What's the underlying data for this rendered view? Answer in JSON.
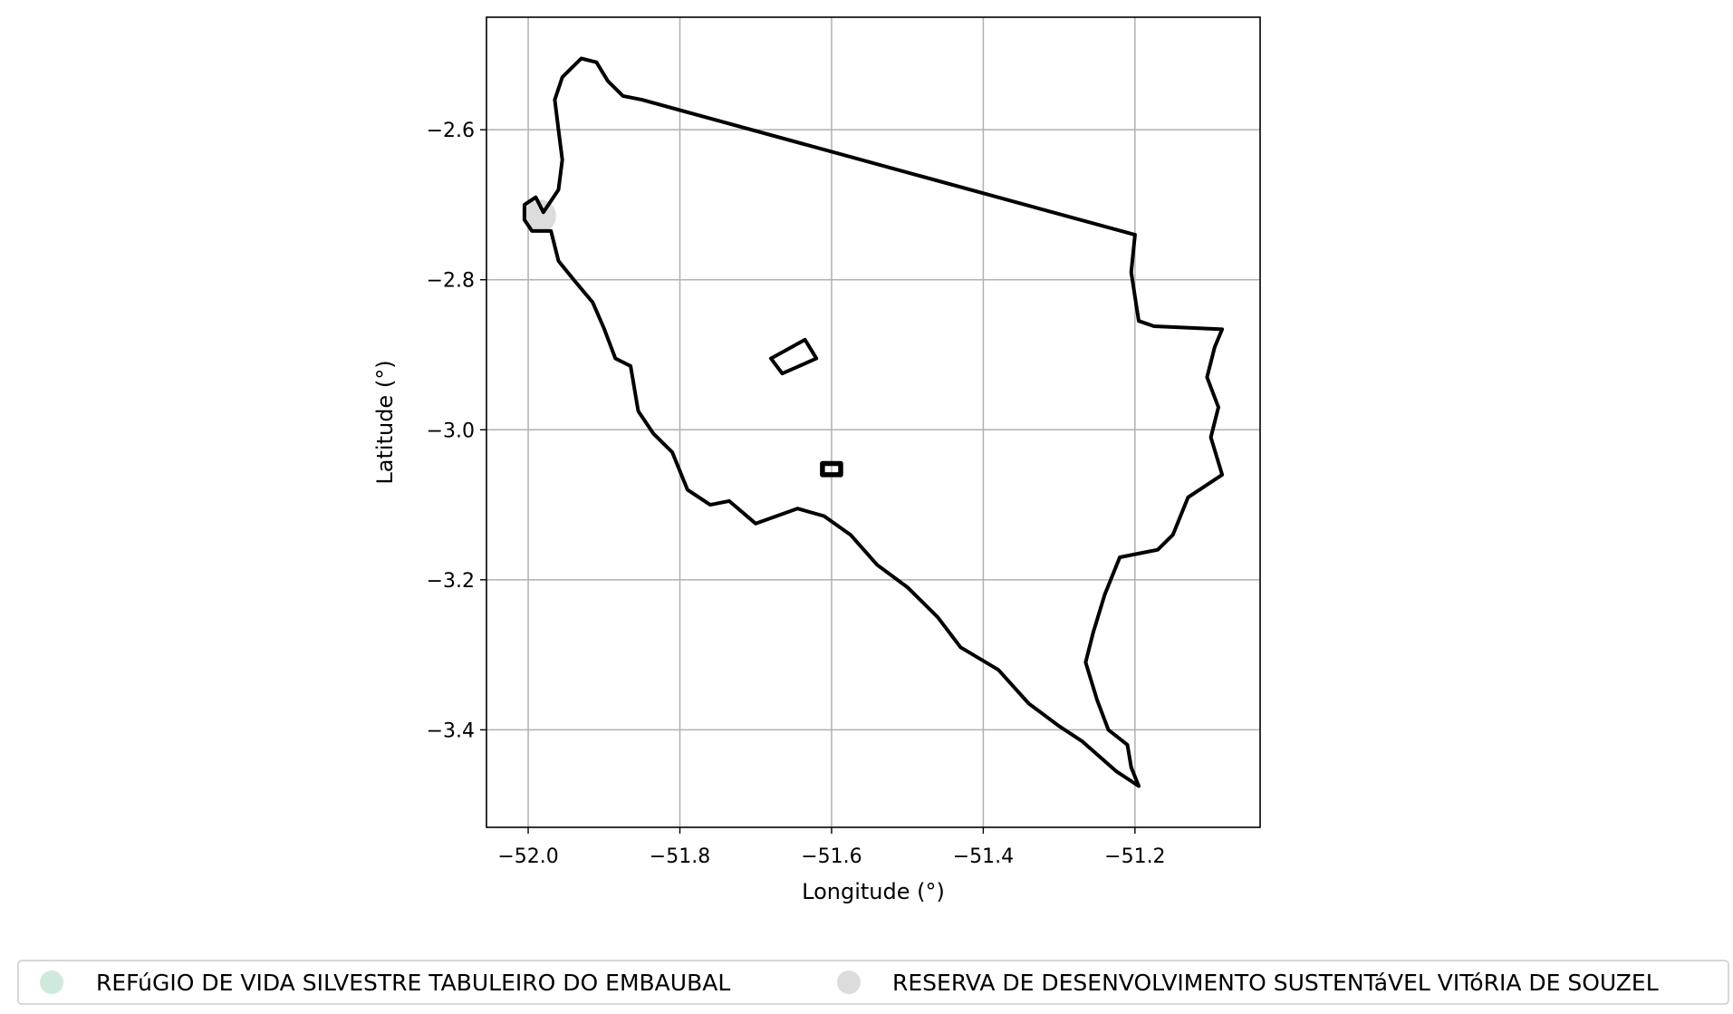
{
  "chart_data": {
    "type": "map",
    "xlabel": "Longitude (°)",
    "ylabel": "Latitude (°)",
    "xlim": [
      -52.055,
      -51.035
    ],
    "ylim": [
      -3.53,
      -2.45
    ],
    "xticks": [
      -52.0,
      -51.8,
      -51.6,
      -51.4,
      -51.2
    ],
    "xtick_labels": [
      "−52.0",
      "−51.8",
      "−51.6",
      "−51.4",
      "−51.2"
    ],
    "yticks": [
      -2.6,
      -2.8,
      -3.0,
      -3.2,
      -3.4
    ],
    "ytick_labels": [
      "−2.6",
      "−2.8",
      "−3.0",
      "−3.2",
      "−3.4"
    ],
    "grid": true,
    "legend_position": "bottom",
    "outline_color": "#000000",
    "boundary": [
      [
        -51.98,
        -2.71
      ],
      [
        -51.96,
        -2.68
      ],
      [
        -51.955,
        -2.64
      ],
      [
        -51.96,
        -2.6
      ],
      [
        -51.965,
        -2.56
      ],
      [
        -51.955,
        -2.53
      ],
      [
        -51.93,
        -2.505
      ],
      [
        -51.91,
        -2.51
      ],
      [
        -51.895,
        -2.535
      ],
      [
        -51.875,
        -2.555
      ],
      [
        -51.85,
        -2.56
      ],
      [
        -51.2,
        -2.74
      ],
      [
        -51.205,
        -2.79
      ],
      [
        -51.195,
        -2.855
      ],
      [
        -51.175,
        -2.862
      ],
      [
        -51.085,
        -2.866
      ],
      [
        -51.095,
        -2.89
      ],
      [
        -51.105,
        -2.93
      ],
      [
        -51.09,
        -2.97
      ],
      [
        -51.1,
        -3.01
      ],
      [
        -51.085,
        -3.06
      ],
      [
        -51.13,
        -3.09
      ],
      [
        -51.15,
        -3.14
      ],
      [
        -51.17,
        -3.16
      ],
      [
        -51.22,
        -3.17
      ],
      [
        -51.24,
        -3.22
      ],
      [
        -51.255,
        -3.27
      ],
      [
        -51.265,
        -3.31
      ],
      [
        -51.25,
        -3.36
      ],
      [
        -51.235,
        -3.4
      ],
      [
        -51.21,
        -3.42
      ],
      [
        -51.205,
        -3.45
      ],
      [
        -51.195,
        -3.475
      ],
      [
        -51.225,
        -3.455
      ],
      [
        -51.27,
        -3.415
      ],
      [
        -51.3,
        -3.395
      ],
      [
        -51.34,
        -3.365
      ],
      [
        -51.38,
        -3.32
      ],
      [
        -51.43,
        -3.29
      ],
      [
        -51.46,
        -3.25
      ],
      [
        -51.5,
        -3.21
      ],
      [
        -51.54,
        -3.18
      ],
      [
        -51.575,
        -3.14
      ],
      [
        -51.61,
        -3.115
      ],
      [
        -51.645,
        -3.105
      ],
      [
        -51.7,
        -3.125
      ],
      [
        -51.735,
        -3.095
      ],
      [
        -51.76,
        -3.1
      ],
      [
        -51.79,
        -3.08
      ],
      [
        -51.81,
        -3.03
      ],
      [
        -51.835,
        -3.005
      ],
      [
        -51.855,
        -2.975
      ],
      [
        -51.865,
        -2.915
      ],
      [
        -51.885,
        -2.905
      ],
      [
        -51.9,
        -2.865
      ],
      [
        -51.915,
        -2.83
      ],
      [
        -51.94,
        -2.8
      ],
      [
        -51.96,
        -2.775
      ],
      [
        -51.97,
        -2.735
      ],
      [
        -51.995,
        -2.735
      ],
      [
        -52.005,
        -2.72
      ],
      [
        -52.005,
        -2.7
      ],
      [
        -51.99,
        -2.69
      ],
      [
        -51.98,
        -2.71
      ]
    ],
    "polygons": [
      [
        [
          -51.68,
          -2.905
        ],
        [
          -51.635,
          -2.88
        ],
        [
          -51.62,
          -2.905
        ],
        [
          -51.665,
          -2.925
        ],
        [
          -51.68,
          -2.905
        ]
      ],
      [
        [
          -51.612,
          -3.045
        ],
        [
          -51.588,
          -3.045
        ],
        [
          -51.588,
          -3.06
        ],
        [
          -51.612,
          -3.06
        ],
        [
          -51.612,
          -3.045
        ]
      ]
    ],
    "shaded_areas": [
      {
        "series": 0,
        "center": [
          -51.995,
          -2.705
        ],
        "rx": 0.012,
        "ry": 0.012
      },
      {
        "series": 1,
        "center": [
          -51.985,
          -2.715
        ],
        "rx": 0.022,
        "ry": 0.022
      }
    ],
    "series": [
      {
        "name": "REFúGIO DE VIDA SILVESTRE TABULEIRO DO EMBAUBAL",
        "color": "#cfeadc"
      },
      {
        "name": "RESERVA DE DESENVOLVIMENTO SUSTENTáVEL VITóRIA DE SOUZEL",
        "color": "#dcdcdc"
      }
    ]
  }
}
